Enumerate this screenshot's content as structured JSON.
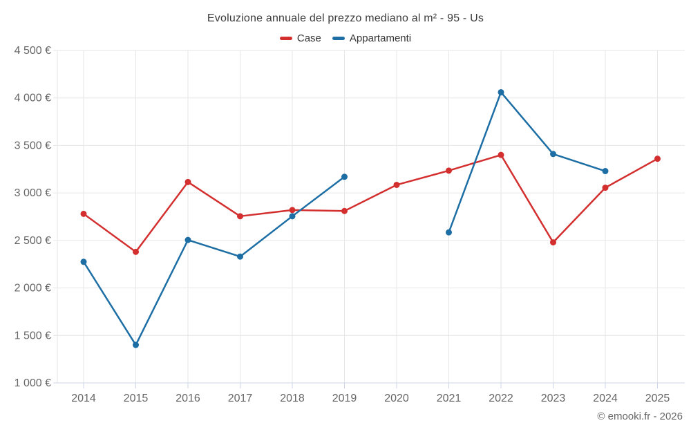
{
  "title": "Evoluzione annuale del prezzo mediano al m² - 95 - Us",
  "legend": {
    "items": [
      {
        "label": "Case",
        "color": "#d32f2f"
      },
      {
        "label": "Appartamenti",
        "color": "#1c6ea4"
      }
    ]
  },
  "copyright": "© emooki.fr - 2026",
  "axis": {
    "ytick_labels": [
      "1 000 €",
      "1 500 €",
      "2 000 €",
      "2 500 €",
      "3 000 €",
      "3 500 €",
      "4 000 €",
      "4 500 €"
    ],
    "xtick_labels": [
      "2014",
      "2015",
      "2016",
      "2017",
      "2018",
      "2019",
      "2020",
      "2021",
      "2022",
      "2023",
      "2024",
      "2025"
    ]
  },
  "chart_data": {
    "type": "line",
    "title": "Evoluzione annuale del prezzo mediano al m² - 95 - Us",
    "x": [
      2014,
      2015,
      2016,
      2017,
      2018,
      2019,
      2020,
      2021,
      2022,
      2023,
      2024,
      2025
    ],
    "series": [
      {
        "name": "Case",
        "color": "#d32f2f",
        "values": [
          2780,
          2380,
          3115,
          2755,
          2820,
          2810,
          3085,
          3235,
          3400,
          2480,
          3055,
          3360
        ]
      },
      {
        "name": "Appartamenti",
        "color": "#1c6ea4",
        "values": [
          2275,
          1400,
          2505,
          2330,
          2755,
          3170,
          null,
          2585,
          4060,
          3410,
          3230,
          null
        ]
      }
    ],
    "xlabel": "",
    "ylabel": "",
    "y_unit": "€",
    "ylim": [
      1000,
      4500
    ],
    "ytick_step": 500,
    "grid": true,
    "legend_position": "top"
  },
  "colors": {
    "background": "#ffffff",
    "gridline": "#e6e6e6",
    "axis_line": "#ccd6eb",
    "tick": "#ccd6eb",
    "axis_text": "#666666",
    "title_text": "#3a3a3a",
    "legend_text": "#333333",
    "copyright_text": "#666666"
  }
}
